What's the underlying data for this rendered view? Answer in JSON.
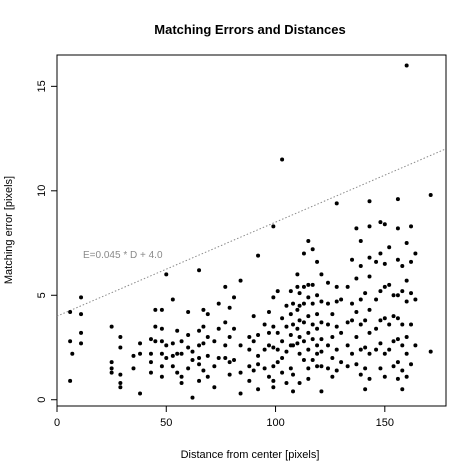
{
  "chart_data": {
    "type": "scatter",
    "title": "Matching Errors and Distances",
    "xlabel": "Distance from center [pixels]",
    "ylabel": "Matching error [pixels]",
    "xlim": [
      0,
      178
    ],
    "ylim": [
      -0.3,
      16.5
    ],
    "x_ticks": [
      0,
      50,
      100,
      150
    ],
    "y_ticks": [
      0,
      5,
      10,
      15
    ],
    "grid": false,
    "legend": "none",
    "point_color": "#000000",
    "fit_line": {
      "label": "E=0.045 * D + 4.0",
      "slope": 0.045,
      "intercept": 4.0,
      "color": "#8a8a8a",
      "style": "dotted"
    },
    "points": [
      [
        6,
        4.2
      ],
      [
        6,
        0.9
      ],
      [
        6,
        2.8
      ],
      [
        7,
        2.2
      ],
      [
        11,
        4.9
      ],
      [
        11,
        4.1
      ],
      [
        11,
        3.2
      ],
      [
        11,
        2.7
      ],
      [
        25,
        3.5
      ],
      [
        25,
        1.8
      ],
      [
        25,
        1.5
      ],
      [
        25,
        1.3
      ],
      [
        29,
        3.0
      ],
      [
        29,
        2.5
      ],
      [
        29,
        1.2
      ],
      [
        29,
        0.8
      ],
      [
        29,
        0.6
      ],
      [
        35,
        2.1
      ],
      [
        35,
        1.5
      ],
      [
        38,
        2.7
      ],
      [
        38,
        2.2
      ],
      [
        38,
        0.3
      ],
      [
        43,
        2.9
      ],
      [
        43,
        2.2
      ],
      [
        43,
        1.8
      ],
      [
        43,
        1.3
      ],
      [
        45,
        4.3
      ],
      [
        45,
        3.5
      ],
      [
        45,
        2.8
      ],
      [
        48,
        4.3
      ],
      [
        48,
        3.4
      ],
      [
        48,
        2.8
      ],
      [
        48,
        2.2
      ],
      [
        48,
        1.6
      ],
      [
        48,
        1.1
      ],
      [
        50,
        6.0
      ],
      [
        50,
        2.6
      ],
      [
        50,
        2.0
      ],
      [
        53,
        4.8
      ],
      [
        53,
        2.7
      ],
      [
        53,
        2.1
      ],
      [
        53,
        1.6
      ],
      [
        55,
        3.3
      ],
      [
        55,
        2.2
      ],
      [
        55,
        1.3
      ],
      [
        57,
        2.8
      ],
      [
        57,
        2.2
      ],
      [
        57,
        1.1
      ],
      [
        57,
        0.8
      ],
      [
        60,
        4.2
      ],
      [
        60,
        3.1
      ],
      [
        60,
        2.5
      ],
      [
        60,
        1.5
      ],
      [
        62,
        2.3
      ],
      [
        62,
        1.9
      ],
      [
        62,
        0.1
      ],
      [
        65,
        6.2
      ],
      [
        65,
        3.3
      ],
      [
        65,
        2.6
      ],
      [
        65,
        2.0
      ],
      [
        65,
        1.7
      ],
      [
        65,
        0.9
      ],
      [
        67,
        4.3
      ],
      [
        67,
        3.5
      ],
      [
        67,
        2.7
      ],
      [
        67,
        1.4
      ],
      [
        69,
        4.1
      ],
      [
        69,
        3.0
      ],
      [
        69,
        2.1
      ],
      [
        69,
        1.1
      ],
      [
        72,
        2.8
      ],
      [
        72,
        1.6
      ],
      [
        72,
        0.6
      ],
      [
        74,
        4.6
      ],
      [
        74,
        3.4
      ],
      [
        74,
        2.0
      ],
      [
        77,
        5.4
      ],
      [
        77,
        3.7
      ],
      [
        77,
        2.6
      ],
      [
        77,
        2.0
      ],
      [
        79,
        4.4
      ],
      [
        79,
        3.0
      ],
      [
        79,
        1.8
      ],
      [
        79,
        1.2
      ],
      [
        81,
        4.9
      ],
      [
        81,
        3.4
      ],
      [
        81,
        1.9
      ],
      [
        84,
        5.7
      ],
      [
        84,
        2.6
      ],
      [
        84,
        1.3
      ],
      [
        84,
        0.3
      ],
      [
        88,
        3.0
      ],
      [
        88,
        2.4
      ],
      [
        88,
        1.6
      ],
      [
        88,
        0.9
      ],
      [
        90,
        4.0
      ],
      [
        90,
        2.8
      ],
      [
        90,
        1.4
      ],
      [
        92,
        6.9
      ],
      [
        92,
        3.1
      ],
      [
        92,
        2.1
      ],
      [
        92,
        1.7
      ],
      [
        92,
        0.5
      ],
      [
        95,
        3.6
      ],
      [
        95,
        2.4
      ],
      [
        95,
        1.5
      ],
      [
        97,
        4.2
      ],
      [
        97,
        3.2
      ],
      [
        97,
        2.6
      ],
      [
        97,
        1.1
      ],
      [
        99,
        8.3
      ],
      [
        99,
        4.9
      ],
      [
        99,
        3.5
      ],
      [
        99,
        2.5
      ],
      [
        99,
        1.6
      ],
      [
        99,
        0.9
      ],
      [
        99,
        0.6
      ],
      [
        101,
        5.2
      ],
      [
        101,
        3.2
      ],
      [
        101,
        2.4
      ],
      [
        101,
        1.8
      ],
      [
        103,
        11.5
      ],
      [
        103,
        3.9
      ],
      [
        103,
        2.8
      ],
      [
        103,
        2.0
      ],
      [
        103,
        1.3
      ],
      [
        105,
        4.5
      ],
      [
        105,
        3.5
      ],
      [
        105,
        2.3
      ],
      [
        105,
        0.8
      ],
      [
        107,
        5.2
      ],
      [
        107,
        4.1
      ],
      [
        107,
        3.1
      ],
      [
        107,
        2.6
      ],
      [
        107,
        1.5
      ],
      [
        108,
        4.6
      ],
      [
        108,
        3.6
      ],
      [
        108,
        2.6
      ],
      [
        108,
        1.2
      ],
      [
        108,
        0.4
      ],
      [
        110,
        6.0
      ],
      [
        110,
        5.4
      ],
      [
        110,
        4.3
      ],
      [
        110,
        3.4
      ],
      [
        110,
        2.7
      ],
      [
        111,
        5.1
      ],
      [
        111,
        4.5
      ],
      [
        111,
        3.8
      ],
      [
        111,
        3.0
      ],
      [
        111,
        2.2
      ],
      [
        111,
        0.8
      ],
      [
        113,
        7.0
      ],
      [
        113,
        5.4
      ],
      [
        113,
        4.6
      ],
      [
        113,
        3.7
      ],
      [
        113,
        2.8
      ],
      [
        113,
        1.9
      ],
      [
        115,
        7.6
      ],
      [
        115,
        5.5
      ],
      [
        115,
        4.9
      ],
      [
        115,
        4.0
      ],
      [
        115,
        3.2
      ],
      [
        115,
        2.4
      ],
      [
        115,
        1.5
      ],
      [
        115,
        1.0
      ],
      [
        117,
        7.2
      ],
      [
        117,
        5.5
      ],
      [
        117,
        4.6
      ],
      [
        117,
        3.6
      ],
      [
        117,
        2.9
      ],
      [
        117,
        1.9
      ],
      [
        119,
        6.6
      ],
      [
        119,
        5.0
      ],
      [
        119,
        4.1
      ],
      [
        119,
        3.4
      ],
      [
        119,
        2.6
      ],
      [
        119,
        2.2
      ],
      [
        119,
        1.6
      ],
      [
        121,
        6.0
      ],
      [
        121,
        4.7
      ],
      [
        121,
        3.7
      ],
      [
        121,
        2.9
      ],
      [
        121,
        2.3
      ],
      [
        121,
        1.6
      ],
      [
        121,
        0.4
      ],
      [
        124,
        5.6
      ],
      [
        124,
        4.6
      ],
      [
        124,
        3.6
      ],
      [
        124,
        2.6
      ],
      [
        124,
        1.5
      ],
      [
        126,
        4.1
      ],
      [
        126,
        3.0
      ],
      [
        126,
        2.0
      ],
      [
        126,
        1.1
      ],
      [
        128,
        9.4
      ],
      [
        128,
        5.4
      ],
      [
        128,
        4.7
      ],
      [
        128,
        3.5
      ],
      [
        128,
        2.4
      ],
      [
        128,
        1.4
      ],
      [
        130,
        4.8
      ],
      [
        130,
        3.2
      ],
      [
        130,
        1.8
      ],
      [
        133,
        5.4
      ],
      [
        133,
        3.7
      ],
      [
        133,
        2.6
      ],
      [
        133,
        1.6
      ],
      [
        135,
        6.7
      ],
      [
        135,
        4.6
      ],
      [
        135,
        3.8
      ],
      [
        135,
        2.2
      ],
      [
        137,
        8.2
      ],
      [
        137,
        5.8
      ],
      [
        137,
        4.2
      ],
      [
        137,
        3.0
      ],
      [
        137,
        1.7
      ],
      [
        139,
        7.6
      ],
      [
        139,
        6.4
      ],
      [
        139,
        4.8
      ],
      [
        139,
        3.6
      ],
      [
        139,
        2.4
      ],
      [
        139,
        1.2
      ],
      [
        141,
        5.1
      ],
      [
        141,
        3.8
      ],
      [
        141,
        2.5
      ],
      [
        141,
        1.5
      ],
      [
        141,
        0.5
      ],
      [
        143,
        9.5
      ],
      [
        143,
        8.3
      ],
      [
        143,
        6.8
      ],
      [
        143,
        5.9
      ],
      [
        143,
        4.3
      ],
      [
        143,
        3.2
      ],
      [
        143,
        2.2
      ],
      [
        143,
        1.0
      ],
      [
        146,
        6.6
      ],
      [
        146,
        4.8
      ],
      [
        146,
        3.4
      ],
      [
        146,
        2.4
      ],
      [
        148,
        8.5
      ],
      [
        148,
        7.0
      ],
      [
        148,
        5.2
      ],
      [
        148,
        3.8
      ],
      [
        148,
        2.7
      ],
      [
        148,
        1.5
      ],
      [
        150,
        8.4
      ],
      [
        150,
        6.5
      ],
      [
        150,
        5.4
      ],
      [
        150,
        3.9
      ],
      [
        150,
        2.2
      ],
      [
        150,
        1.1
      ],
      [
        152,
        7.3
      ],
      [
        152,
        5.5
      ],
      [
        152,
        3.6
      ],
      [
        152,
        2.4
      ],
      [
        154,
        5.0
      ],
      [
        154,
        4.0
      ],
      [
        154,
        2.8
      ],
      [
        154,
        1.6
      ],
      [
        156,
        9.6
      ],
      [
        156,
        8.2
      ],
      [
        156,
        6.7
      ],
      [
        156,
        5.0
      ],
      [
        156,
        3.9
      ],
      [
        156,
        2.9
      ],
      [
        156,
        1.8
      ],
      [
        156,
        1.0
      ],
      [
        158,
        6.4
      ],
      [
        158,
        5.2
      ],
      [
        158,
        3.6
      ],
      [
        158,
        2.6
      ],
      [
        158,
        1.4
      ],
      [
        158,
        0.5
      ],
      [
        160,
        16.0
      ],
      [
        160,
        7.5
      ],
      [
        160,
        5.7
      ],
      [
        160,
        4.7
      ],
      [
        160,
        3.0
      ],
      [
        160,
        2.2
      ],
      [
        160,
        1.1
      ],
      [
        162,
        8.3
      ],
      [
        162,
        6.6
      ],
      [
        162,
        5.1
      ],
      [
        162,
        3.6
      ],
      [
        162,
        1.7
      ],
      [
        164,
        7.0
      ],
      [
        164,
        4.8
      ],
      [
        164,
        2.6
      ],
      [
        171,
        9.8
      ],
      [
        171,
        2.3
      ]
    ]
  }
}
